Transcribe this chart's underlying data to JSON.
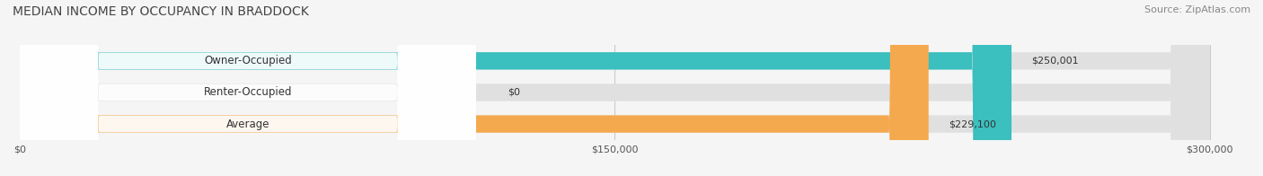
{
  "title": "MEDIAN INCOME BY OCCUPANCY IN BRADDOCK",
  "source": "Source: ZipAtlas.com",
  "categories": [
    "Owner-Occupied",
    "Renter-Occupied",
    "Average"
  ],
  "values": [
    250001,
    0,
    229100
  ],
  "bar_colors": [
    "#3bbfbf",
    "#c9aed6",
    "#f5a94e"
  ],
  "bar_labels": [
    "$250,001",
    "$0",
    "$229,100"
  ],
  "x_ticks": [
    0,
    150000,
    300000
  ],
  "x_tick_labels": [
    "$0",
    "$150,000",
    "$300,000"
  ],
  "xlim": [
    0,
    300000
  ],
  "bg_color": "#f0f0f0",
  "bar_bg_color": "#e8e8e8",
  "label_white_bg": true,
  "bar_height": 0.55,
  "figsize": [
    14.06,
    1.96
  ],
  "dpi": 100
}
